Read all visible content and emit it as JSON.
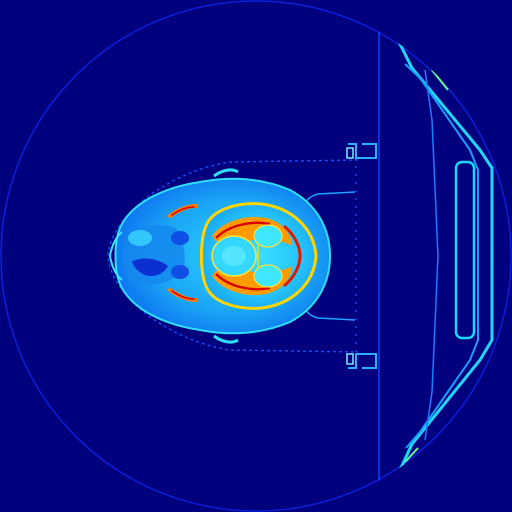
{
  "image": {
    "kind": "ct-axial-slice",
    "colormap": "jet",
    "background_color": "#00007f",
    "colors": {
      "field_edge": "#0a1fd8",
      "soft_tissue": "#1aa0f0",
      "tissue_light": "#35d2ff",
      "tissue_mid": "#0e6cf2",
      "hot_yellow": "#ffd400",
      "hot_orange": "#ff7a00",
      "hot_red": "#d80000",
      "fixation_frame": "#1050ff",
      "headrest_cyan": "#1fd6ff",
      "headrest_green": "#66ff88"
    }
  }
}
